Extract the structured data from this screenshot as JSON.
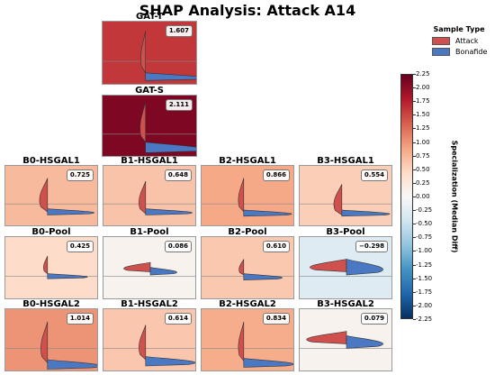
{
  "title": "SHAP Analysis: Attack A14",
  "legend": {
    "title": "Sample Type",
    "items": [
      {
        "label": "Attack",
        "color": "#d0504e"
      },
      {
        "label": "Bonafide",
        "color": "#4a78c2"
      }
    ]
  },
  "colorbar": {
    "label": "Specialization (Median Diff)",
    "min": -2.25,
    "max": 2.25,
    "ticks": [
      "2.25",
      "2.00",
      "1.75",
      "1.50",
      "1.25",
      "1.00",
      "0.75",
      "0.50",
      "0.25",
      "0.00",
      "-0.25",
      "-0.50",
      "-0.75",
      "-1.00",
      "-1.25",
      "-1.50",
      "-1.75",
      "-2.00",
      "-2.25"
    ]
  },
  "chart_data": {
    "type": "heatmap",
    "description_free": true,
    "panels": [
      {
        "name": "GAT-T",
        "value": 1.607,
        "label": "1.607"
      },
      {
        "name": "GAT-S",
        "value": 2.111,
        "label": "2.111"
      },
      {
        "name": "B0-HSGAL1",
        "value": 0.725,
        "label": "0.725"
      },
      {
        "name": "B1-HSGAL1",
        "value": 0.648,
        "label": "0.648"
      },
      {
        "name": "B2-HSGAL1",
        "value": 0.866,
        "label": "0.866"
      },
      {
        "name": "B3-HSGAL1",
        "value": 0.554,
        "label": "0.554"
      },
      {
        "name": "B0-Pool",
        "value": 0.425,
        "label": "0.425"
      },
      {
        "name": "B1-Pool",
        "value": 0.086,
        "label": "0.086"
      },
      {
        "name": "B2-Pool",
        "value": 0.61,
        "label": "0.610"
      },
      {
        "name": "B3-Pool",
        "value": -0.298,
        "label": "−0.298"
      },
      {
        "name": "B0-HSGAL2",
        "value": 1.014,
        "label": "1.014"
      },
      {
        "name": "B1-HSGAL2",
        "value": 0.614,
        "label": "0.614"
      },
      {
        "name": "B2-HSGAL2",
        "value": 0.834,
        "label": "0.834"
      },
      {
        "name": "B3-HSGAL2",
        "value": 0.079,
        "label": "0.079"
      }
    ]
  }
}
